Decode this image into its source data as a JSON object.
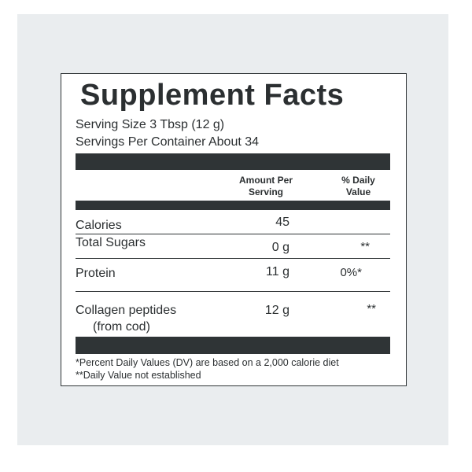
{
  "label": {
    "title": "Supplement Facts",
    "serving_size": "Serving Size 3 Tbsp (12 g)",
    "servings_per_container": "Servings Per Container About 34",
    "col_amount_line1": "Amount Per",
    "col_amount_line2": "Serving",
    "col_dv_line1": "% Daily",
    "col_dv_line2": "Value",
    "rows": [
      {
        "name": "Calories",
        "amount": "45",
        "dv": ""
      },
      {
        "name": "Total Sugars",
        "amount": "0 g",
        "dv": "**"
      },
      {
        "name": "Protein",
        "amount": "11 g",
        "dv": "0%*"
      },
      {
        "name_line1": "Collagen peptides",
        "name_line2": "(from cod)",
        "amount": "12 g",
        "dv": "**"
      }
    ],
    "footnote_1": "*Percent Daily Values (DV) are based on a 2,000 calorie diet",
    "footnote_2": "**Daily Value not established"
  }
}
